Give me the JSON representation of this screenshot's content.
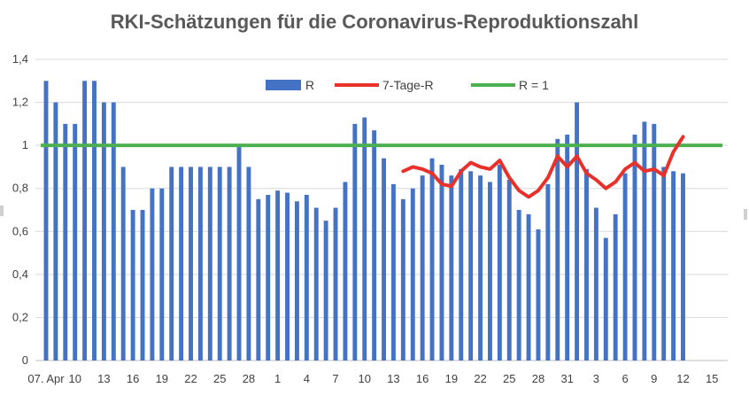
{
  "chart_data": {
    "type": "bar",
    "title": "RKI-Schätzungen für die Coronavirus-Reproduktionszahl",
    "xlabel": "",
    "ylabel": "",
    "ylim": [
      0,
      1.4
    ],
    "y_ticks": [
      "0",
      "0,2",
      "0,4",
      "0,6",
      "0,8",
      "1",
      "1,2",
      "1,4"
    ],
    "y_tick_values": [
      0,
      0.2,
      0.4,
      0.6,
      0.8,
      1.0,
      1.2,
      1.4
    ],
    "x_tick_labels": [
      "07. Apr",
      "10",
      "13",
      "16",
      "19",
      "22",
      "25",
      "28",
      "1",
      "4",
      "7",
      "10",
      "13",
      "16",
      "19",
      "22",
      "25",
      "28",
      "31",
      "3",
      "6",
      "9",
      "12",
      "15"
    ],
    "grid": true,
    "legend_position": "top",
    "series": [
      {
        "name": "R",
        "kind": "bar",
        "color": "#4472C4",
        "values": [
          1.3,
          1.2,
          1.1,
          1.1,
          1.3,
          1.3,
          1.2,
          1.2,
          0.9,
          0.7,
          0.7,
          0.8,
          0.8,
          0.9,
          0.9,
          0.9,
          0.9,
          0.9,
          0.9,
          0.9,
          1.0,
          0.9,
          0.75,
          0.77,
          0.79,
          0.78,
          0.74,
          0.77,
          0.71,
          0.65,
          0.71,
          0.83,
          1.1,
          1.13,
          1.07,
          0.94,
          0.82,
          0.75,
          0.8,
          0.86,
          0.94,
          0.91,
          0.86,
          0.89,
          0.88,
          0.86,
          0.83,
          0.91,
          0.84,
          0.7,
          0.68,
          0.61,
          0.82,
          1.03,
          1.05,
          1.2,
          0.89,
          0.71,
          0.57,
          0.68,
          0.87,
          1.05,
          1.11,
          1.1,
          0.9,
          0.88,
          0.87
        ]
      },
      {
        "name": "7-Tage-R",
        "kind": "line",
        "color": "#E8312A",
        "start_index": 37,
        "values": [
          0.88,
          0.9,
          0.89,
          0.87,
          0.82,
          0.81,
          0.88,
          0.92,
          0.9,
          0.89,
          0.93,
          0.85,
          0.79,
          0.76,
          0.79,
          0.85,
          0.95,
          0.9,
          0.95,
          0.87,
          0.84,
          0.8,
          0.83,
          0.89,
          0.92,
          0.88,
          0.89,
          0.86,
          0.97,
          1.04
        ]
      },
      {
        "name": "R = 1",
        "kind": "line",
        "color": "#4CAF50",
        "constant": 1.0
      }
    ]
  }
}
